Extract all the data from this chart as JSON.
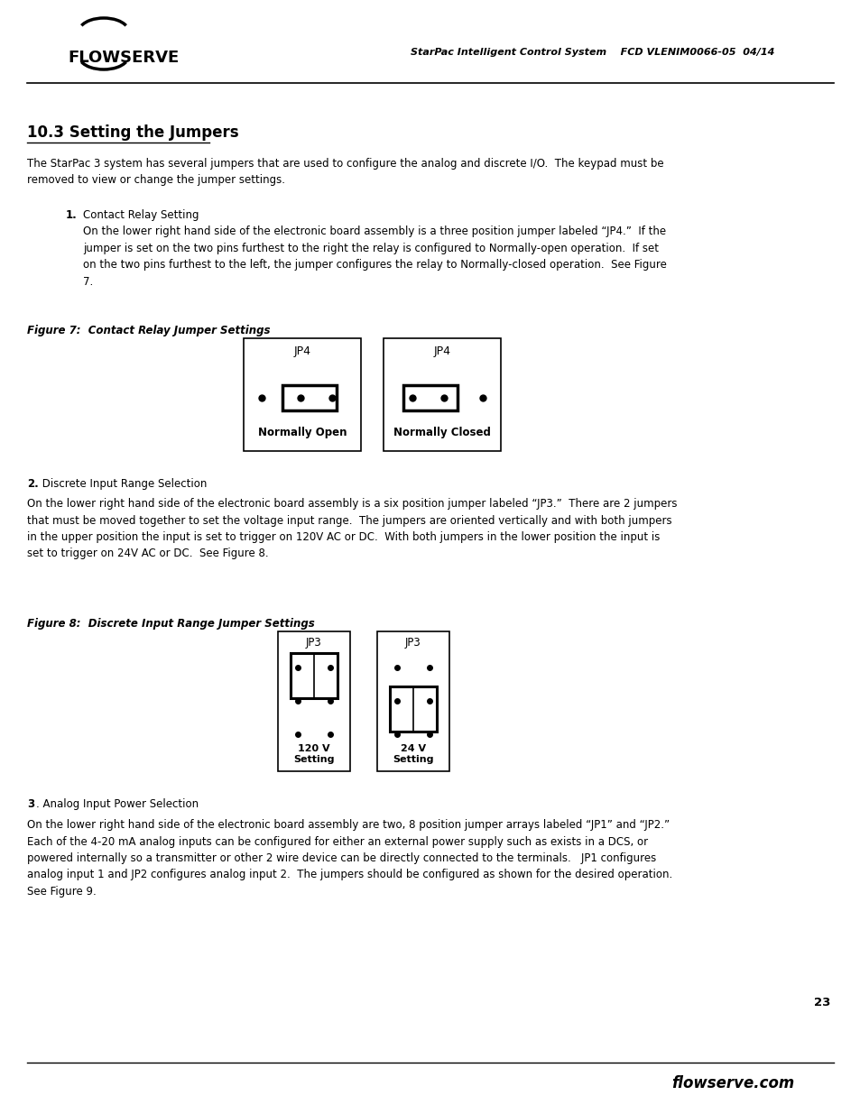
{
  "page_title": "StarPac Intelligent Control System    FCD VLENIM0066-05  04/14",
  "section_title": "10.3 Setting the Jumpers",
  "intro_text": "The StarPac 3 system has several jumpers that are used to configure the analog and discrete I/O.  The keypad must be\nremoved to view or change the jumper settings.",
  "item1_label": "1.",
  "item1_title": "Contact Relay Setting",
  "item1_text": "On the lower right hand side of the electronic board assembly is a three position jumper labeled “JP4.”  If the\njumper is set on the two pins furthest to the right the relay is configured to Normally-open operation.  If set\non the two pins furthest to the left, the jumper configures the relay to Normally-closed operation.  See Figure\n7.",
  "fig7_caption": "Figure 7:  Contact Relay Jumper Settings",
  "fig7_box1_label": "JP4",
  "fig7_box1_sublabel": "Normally Open",
  "fig7_box2_label": "JP4",
  "fig7_box2_sublabel": "Normally Closed",
  "item2_label": "2.",
  "item2_title": " Discrete Input Range Selection",
  "item2_text": "On the lower right hand side of the electronic board assembly is a six position jumper labeled “JP3.”  There are 2 jumpers\nthat must be moved together to set the voltage input range.  The jumpers are oriented vertically and with both jumpers\nin the upper position the input is set to trigger on 120V AC or DC.  With both jumpers in the lower position the input is\nset to trigger on 24V AC or DC.  See Figure 8.",
  "fig8_caption": "Figure 8:  Discrete Input Range Jumper Settings",
  "fig8_box1_label": "JP3",
  "fig8_box1_sublabel": "120 V\nSetting",
  "fig8_box2_label": "JP3",
  "fig8_box2_sublabel": "24 V\nSetting",
  "item3_label": "3",
  "item3_title": ". Analog Input Power Selection",
  "item3_text": "On the lower right hand side of the electronic board assembly are two, 8 position jumper arrays labeled “JP1” and “JP2.”\nEach of the 4-20 mA analog inputs can be configured for either an external power supply such as exists in a DCS, or\npowered internally so a transmitter or other 2 wire device can be directly connected to the terminals.   JP1 configures\nanalog input 1 and JP2 configures analog input 2.  The jumpers should be configured as shown for the desired operation.\nSee Figure 9.",
  "page_number": "23",
  "footer_text": "flowserve.com",
  "background_color": "#ffffff",
  "text_color": "#000000"
}
